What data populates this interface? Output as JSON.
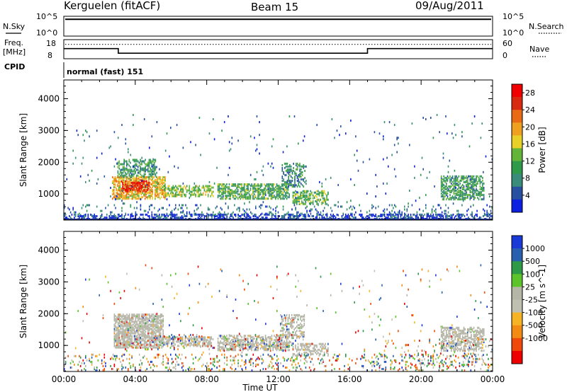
{
  "header": {
    "station": "Kerguelen (fitACF)",
    "beam": "Beam 15",
    "date": "09/Aug/2011"
  },
  "summary": {
    "left": {
      "nsky": "N.Sky",
      "freq_line1": "Freq.",
      "freq_line2": "[MHz]",
      "cpid": "CPID",
      "nsky_ticks": [
        "10^5",
        "10^0"
      ],
      "freq_ticks": [
        "18",
        "8"
      ]
    },
    "right": {
      "nsearch": "N.Search",
      "nave": "Nave",
      "nsearch_ticks": [
        "10^5",
        "10^0"
      ],
      "nave_ticks": [
        "60",
        "0"
      ]
    },
    "cpid_text": "normal (fast) 151",
    "traces": {
      "nsky_level": 0.85,
      "freq_steps": [
        {
          "t": 0.0,
          "mhz": 13.3
        },
        {
          "t": 3.05,
          "mhz": 10.9
        },
        {
          "t": 17.0,
          "mhz": 13.3
        },
        {
          "t": 24.0,
          "mhz": 13.3
        }
      ],
      "nave_dotted_level": 45
    }
  },
  "colors": {
    "power": [
      "#0c20e0",
      "#2850a0",
      "#3a8c7a",
      "#2e9a4a",
      "#64b43a",
      "#e8d028",
      "#f0a020",
      "#e86a14",
      "#d82a10",
      "#f00000"
    ],
    "velocity": [
      "#ee0000",
      "#ef4a0c",
      "#f28a14",
      "#f6b424",
      "#c0c0b0",
      "#b6b6a6",
      "#5cc42a",
      "#2e9a48",
      "#2860b0",
      "#1a3ad8"
    ],
    "ground_scatter": "#b4b4a6"
  },
  "chart_data": [
    {
      "type": "heatmap",
      "name": "power",
      "title": "",
      "xlabel": "",
      "ylabel": "Slant Range [km]",
      "x_ticks": [
        "00:00",
        "04:00",
        "08:00",
        "12:00",
        "16:00",
        "20:00",
        "00:00"
      ],
      "y_ticks": [
        "1000",
        "2000",
        "3000",
        "4000"
      ],
      "xlim": [
        0,
        24
      ],
      "ylim": [
        180,
        4590
      ],
      "colorbar": {
        "label": "Power [dB]",
        "range": [
          0,
          30
        ],
        "ticks": [
          "4",
          "8",
          "12",
          "16",
          "20",
          "24",
          "28"
        ]
      },
      "patches": [
        {
          "t0": 2.7,
          "t1": 5.7,
          "r0": 820,
          "r1": 1500,
          "p": 18,
          "d": 0.7,
          "seed": 1
        },
        {
          "t0": 3.0,
          "t1": 5.2,
          "r0": 1500,
          "r1": 2050,
          "p": 10,
          "d": 0.45,
          "seed": 2
        },
        {
          "t0": 3.2,
          "t1": 4.8,
          "r0": 1050,
          "r1": 1380,
          "p": 26,
          "d": 0.6,
          "seed": 3
        },
        {
          "t0": 5.6,
          "t1": 8.4,
          "r0": 900,
          "r1": 1250,
          "p": 14,
          "d": 0.55,
          "seed": 4
        },
        {
          "t0": 8.6,
          "t1": 12.6,
          "r0": 820,
          "r1": 1300,
          "p": 11,
          "d": 0.6,
          "seed": 5
        },
        {
          "t0": 12.2,
          "t1": 13.6,
          "r0": 1200,
          "r1": 1950,
          "p": 8,
          "d": 0.4,
          "seed": 6
        },
        {
          "t0": 12.8,
          "t1": 14.8,
          "r0": 650,
          "r1": 1100,
          "p": 12,
          "d": 0.5,
          "seed": 7
        },
        {
          "t0": 21.1,
          "t1": 23.5,
          "r0": 800,
          "r1": 1550,
          "p": 10,
          "d": 0.6,
          "seed": 8
        },
        {
          "t0": 0.0,
          "t1": 24.0,
          "r0": 300,
          "r1": 620,
          "p": 6,
          "d": 0.12,
          "seed": 9
        },
        {
          "t0": 0.0,
          "t1": 24.0,
          "r0": 180,
          "r1": 320,
          "p": 3,
          "d": 0.45,
          "seed": 10
        },
        {
          "t0": 0.0,
          "t1": 24.0,
          "r0": 620,
          "r1": 3500,
          "p": 6,
          "d": 0.012,
          "seed": 11
        }
      ]
    },
    {
      "type": "heatmap",
      "name": "velocity",
      "title": "",
      "xlabel": "Time UT",
      "ylabel": "Slant Range [km]",
      "x_ticks": [
        "00:00",
        "04:00",
        "08:00",
        "12:00",
        "16:00",
        "20:00",
        "00:00"
      ],
      "y_ticks": [
        "1000",
        "2000",
        "3000",
        "4000"
      ],
      "xlim": [
        0,
        24
      ],
      "ylim": [
        180,
        4590
      ],
      "colorbar": {
        "label": "Velocity [m s^-1]",
        "ticks": [
          "1000",
          "500",
          "100",
          "25",
          "-25",
          "-100",
          "-500",
          "-1000"
        ]
      },
      "patches": [
        {
          "t0": 2.8,
          "t1": 5.6,
          "r0": 900,
          "r1": 1950,
          "v": 0,
          "gs": true,
          "d": 0.7,
          "seed": 21
        },
        {
          "t0": 5.5,
          "t1": 8.3,
          "r0": 950,
          "r1": 1250,
          "v": 0,
          "gs": true,
          "d": 0.6,
          "seed": 22
        },
        {
          "t0": 8.6,
          "t1": 12.6,
          "r0": 820,
          "r1": 1300,
          "v": 0,
          "gs": true,
          "d": 0.6,
          "seed": 23
        },
        {
          "t0": 12.1,
          "t1": 13.5,
          "r0": 1200,
          "r1": 1950,
          "v": 0,
          "gs": true,
          "d": 0.45,
          "seed": 24
        },
        {
          "t0": 12.8,
          "t1": 14.8,
          "r0": 650,
          "r1": 1050,
          "v": 0,
          "gs": true,
          "d": 0.45,
          "seed": 25
        },
        {
          "t0": 21.1,
          "t1": 23.5,
          "r0": 800,
          "r1": 1550,
          "v": 0,
          "gs": true,
          "d": 0.6,
          "seed": 26
        },
        {
          "t0": 0.0,
          "t1": 24.0,
          "r0": 180,
          "r1": 700,
          "v": -90,
          "gs": false,
          "d": 0.14,
          "seed": 27
        },
        {
          "t0": 0.0,
          "t1": 24.0,
          "r0": 700,
          "r1": 3500,
          "v": -200,
          "gs": false,
          "d": 0.01,
          "seed": 28
        },
        {
          "t0": 3.0,
          "t1": 13.0,
          "r0": 800,
          "r1": 1300,
          "v": -300,
          "gs": false,
          "d": 0.08,
          "seed": 29
        },
        {
          "t0": 17.5,
          "t1": 24.0,
          "r0": 350,
          "r1": 1200,
          "v": 150,
          "gs": false,
          "d": 0.06,
          "seed": 30
        }
      ]
    }
  ]
}
